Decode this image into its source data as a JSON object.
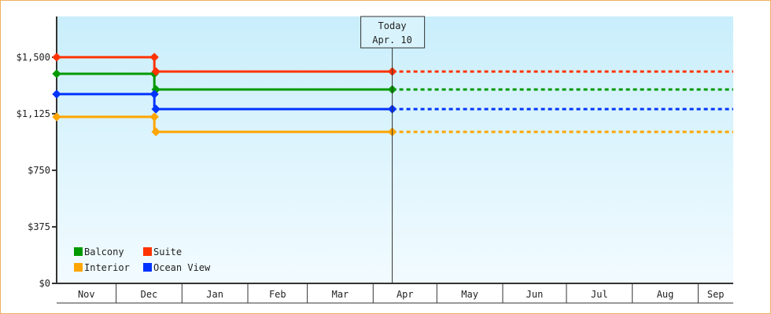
{
  "chart_data": {
    "type": "line",
    "step": true,
    "yticks": [
      {
        "v": 0,
        "label": "$0"
      },
      {
        "v": 375,
        "label": "$375"
      },
      {
        "v": 750,
        "label": "$750"
      },
      {
        "v": 1125,
        "label": "$1,125"
      },
      {
        "v": 1500,
        "label": "$1,500"
      }
    ],
    "ylim": [
      0,
      1770
    ],
    "months": [
      "Nov",
      "Dec",
      "Jan",
      "Feb",
      "Mar",
      "Apr",
      "May",
      "Jun",
      "Jul",
      "Aug",
      "Sep"
    ],
    "today": {
      "title": "Today",
      "date": "Apr. 10"
    },
    "change_date": "Dec 19",
    "series": [
      {
        "name": "Balcony",
        "color": "#009900",
        "before": 1390,
        "after": 1286
      },
      {
        "name": "Suite",
        "color": "#ff3300",
        "before": 1500,
        "after": 1405
      },
      {
        "name": "Interior",
        "color": "#ffa500",
        "before": 1104,
        "after": 1005
      },
      {
        "name": "Ocean View",
        "color": "#0033ff",
        "before": 1255,
        "after": 1156
      }
    ],
    "legend_position": "bottom-left",
    "forecast_style": "dashed after today"
  }
}
